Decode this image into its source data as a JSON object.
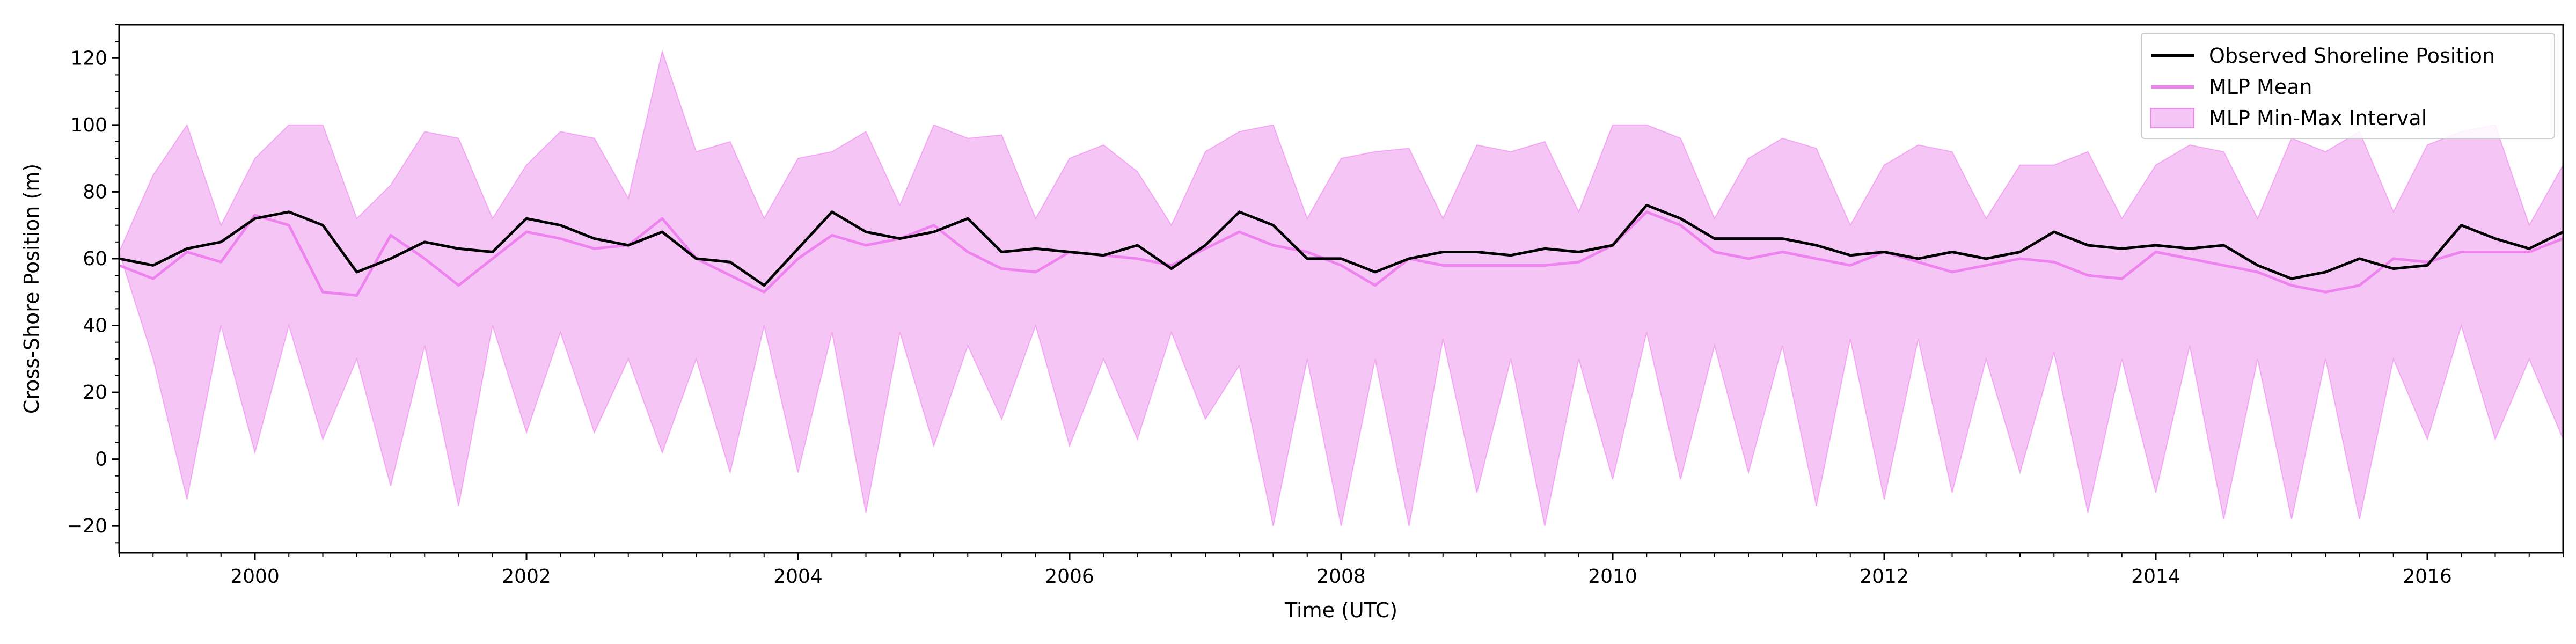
{
  "chart_data": {
    "type": "line",
    "title": "",
    "xlabel": "Time (UTC)",
    "ylabel": "Cross-Shore Position (m)",
    "xlim": [
      1999.0,
      2017.0
    ],
    "ylim": [
      -28,
      130
    ],
    "xticks": [
      2000,
      2002,
      2004,
      2006,
      2008,
      2010,
      2012,
      2014,
      2016
    ],
    "yticks": [
      -20,
      0,
      20,
      40,
      60,
      80,
      100,
      120
    ],
    "grid": false,
    "legend_position": "top-right",
    "colors": {
      "observed": "#000000",
      "mean": "#ee82ee",
      "interval_fill": "#f5c6f5",
      "interval_edge": "#ee82ee"
    },
    "series": [
      {
        "name": "Observed Shoreline Position",
        "style": "line",
        "x": [
          1999.0,
          1999.25,
          1999.5,
          1999.75,
          2000.0,
          2000.25,
          2000.5,
          2000.75,
          2001.0,
          2001.25,
          2001.5,
          2001.75,
          2002.0,
          2002.25,
          2002.5,
          2002.75,
          2003.0,
          2003.25,
          2003.5,
          2003.75,
          2004.0,
          2004.25,
          2004.5,
          2004.75,
          2005.0,
          2005.25,
          2005.5,
          2005.75,
          2006.0,
          2006.25,
          2006.5,
          2006.75,
          2007.0,
          2007.25,
          2007.5,
          2007.75,
          2008.0,
          2008.25,
          2008.5,
          2008.75,
          2009.0,
          2009.25,
          2009.5,
          2009.75,
          2010.0,
          2010.25,
          2010.5,
          2010.75,
          2011.0,
          2011.25,
          2011.5,
          2011.75,
          2012.0,
          2012.25,
          2012.5,
          2012.75,
          2013.0,
          2013.25,
          2013.5,
          2013.75,
          2014.0,
          2014.25,
          2014.5,
          2014.75,
          2015.0,
          2015.25,
          2015.5,
          2015.75,
          2016.0,
          2016.25,
          2016.5,
          2016.75,
          2017.0
        ],
        "values": [
          60,
          58,
          63,
          65,
          72,
          74,
          70,
          56,
          60,
          65,
          63,
          62,
          72,
          70,
          66,
          64,
          68,
          60,
          59,
          52,
          63,
          74,
          68,
          66,
          68,
          72,
          62,
          63,
          62,
          61,
          64,
          57,
          64,
          74,
          70,
          60,
          60,
          56,
          60,
          62,
          62,
          61,
          63,
          62,
          64,
          76,
          72,
          66,
          66,
          66,
          64,
          61,
          62,
          60,
          62,
          60,
          62,
          68,
          64,
          63,
          64,
          63,
          64,
          58,
          54,
          56,
          60,
          57,
          58,
          70,
          66,
          63,
          68
        ]
      },
      {
        "name": "MLP Mean",
        "style": "line",
        "x": [
          1999.0,
          1999.25,
          1999.5,
          1999.75,
          2000.0,
          2000.25,
          2000.5,
          2000.75,
          2001.0,
          2001.25,
          2001.5,
          2001.75,
          2002.0,
          2002.25,
          2002.5,
          2002.75,
          2003.0,
          2003.25,
          2003.5,
          2003.75,
          2004.0,
          2004.25,
          2004.5,
          2004.75,
          2005.0,
          2005.25,
          2005.5,
          2005.75,
          2006.0,
          2006.25,
          2006.5,
          2006.75,
          2007.0,
          2007.25,
          2007.5,
          2007.75,
          2008.0,
          2008.25,
          2008.5,
          2008.75,
          2009.0,
          2009.25,
          2009.5,
          2009.75,
          2010.0,
          2010.25,
          2010.5,
          2010.75,
          2011.0,
          2011.25,
          2011.5,
          2011.75,
          2012.0,
          2012.25,
          2012.5,
          2012.75,
          2013.0,
          2013.25,
          2013.5,
          2013.75,
          2014.0,
          2014.25,
          2014.5,
          2014.75,
          2015.0,
          2015.25,
          2015.5,
          2015.75,
          2016.0,
          2016.25,
          2016.5,
          2016.75,
          2017.0
        ],
        "values": [
          58,
          54,
          62,
          59,
          73,
          70,
          50,
          49,
          67,
          60,
          52,
          60,
          68,
          66,
          63,
          64,
          72,
          60,
          55,
          50,
          60,
          67,
          64,
          66,
          70,
          62,
          57,
          56,
          62,
          61,
          60,
          58,
          63,
          68,
          64,
          62,
          58,
          52,
          60,
          58,
          58,
          58,
          58,
          59,
          64,
          74,
          70,
          62,
          60,
          62,
          60,
          58,
          62,
          59,
          56,
          58,
          60,
          59,
          55,
          54,
          62,
          60,
          58,
          56,
          52,
          50,
          52,
          60,
          59,
          62,
          62,
          62,
          66
        ]
      },
      {
        "name": "MLP Min-Max Interval",
        "style": "band",
        "x": [
          1999.0,
          1999.25,
          1999.5,
          1999.75,
          2000.0,
          2000.25,
          2000.5,
          2000.75,
          2001.0,
          2001.25,
          2001.5,
          2001.75,
          2002.0,
          2002.25,
          2002.5,
          2002.75,
          2003.0,
          2003.25,
          2003.5,
          2003.75,
          2004.0,
          2004.25,
          2004.5,
          2004.75,
          2005.0,
          2005.25,
          2005.5,
          2005.75,
          2006.0,
          2006.25,
          2006.5,
          2006.75,
          2007.0,
          2007.25,
          2007.5,
          2007.75,
          2008.0,
          2008.25,
          2008.5,
          2008.75,
          2009.0,
          2009.25,
          2009.5,
          2009.75,
          2010.0,
          2010.25,
          2010.5,
          2010.75,
          2011.0,
          2011.25,
          2011.5,
          2011.75,
          2012.0,
          2012.25,
          2012.5,
          2012.75,
          2013.0,
          2013.25,
          2013.5,
          2013.75,
          2014.0,
          2014.25,
          2014.5,
          2014.75,
          2015.0,
          2015.25,
          2015.5,
          2015.75,
          2016.0,
          2016.25,
          2016.5,
          2016.75,
          2017.0
        ],
        "upper": [
          62,
          85,
          100,
          70,
          90,
          100,
          100,
          72,
          82,
          98,
          96,
          72,
          88,
          98,
          96,
          78,
          122,
          92,
          95,
          72,
          90,
          92,
          98,
          76,
          100,
          96,
          97,
          72,
          90,
          94,
          86,
          70,
          92,
          98,
          100,
          72,
          90,
          92,
          93,
          72,
          94,
          92,
          95,
          74,
          100,
          100,
          96,
          72,
          90,
          96,
          93,
          70,
          88,
          94,
          92,
          72,
          88,
          88,
          92,
          72,
          88,
          94,
          92,
          72,
          96,
          92,
          98,
          74,
          94,
          98,
          100,
          70,
          88
        ],
        "lower": [
          62,
          30,
          -12,
          40,
          2,
          40,
          6,
          30,
          -8,
          34,
          -14,
          40,
          8,
          38,
          8,
          30,
          2,
          30,
          -4,
          40,
          -4,
          38,
          -16,
          38,
          4,
          34,
          12,
          40,
          4,
          30,
          6,
          38,
          12,
          28,
          -20,
          30,
          -20,
          30,
          -20,
          36,
          -10,
          30,
          -20,
          30,
          -6,
          38,
          -6,
          34,
          -4,
          34,
          -14,
          36,
          -12,
          36,
          -10,
          30,
          -4,
          32,
          -16,
          30,
          -10,
          34,
          -18,
          30,
          -18,
          30,
          -18,
          30,
          6,
          40,
          6,
          30,
          6
        ]
      }
    ]
  }
}
